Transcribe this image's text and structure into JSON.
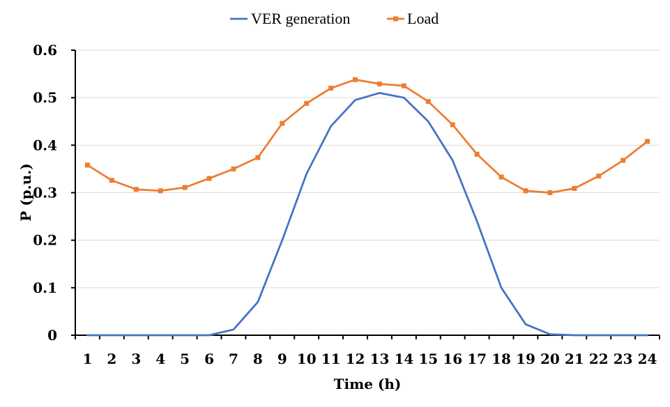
{
  "chart_data": {
    "type": "line",
    "title": "",
    "xlabel": "Time (h)",
    "ylabel": "P (p.u.)",
    "categories": [
      "1",
      "2",
      "3",
      "4",
      "5",
      "6",
      "7",
      "8",
      "9",
      "10",
      "11",
      "12",
      "13",
      "14",
      "15",
      "16",
      "17",
      "18",
      "19",
      "20",
      "21",
      "22",
      "23",
      "24"
    ],
    "ylim": [
      0,
      0.6
    ],
    "yticks": [
      "0",
      "0.1",
      "0.2",
      "0.3",
      "0.4",
      "0.5",
      "0.6"
    ],
    "grid": "horizontal",
    "legend_position": "top",
    "series": [
      {
        "name": "VER generation",
        "color": "#4472c4",
        "marker": "none",
        "values": [
          0,
          0,
          0,
          0,
          0,
          0,
          0.012,
          0.07,
          0.2,
          0.34,
          0.44,
          0.495,
          0.51,
          0.5,
          0.45,
          0.368,
          0.24,
          0.1,
          0.023,
          0.002,
          0,
          0,
          0,
          0
        ]
      },
      {
        "name": "Load",
        "color": "#ed7d31",
        "marker": "square",
        "values": [
          0.358,
          0.326,
          0.307,
          0.304,
          0.311,
          0.33,
          0.35,
          0.374,
          0.446,
          0.488,
          0.52,
          0.538,
          0.529,
          0.525,
          0.492,
          0.443,
          0.381,
          0.333,
          0.304,
          0.3,
          0.309,
          0.335,
          0.368,
          0.408
        ]
      }
    ]
  }
}
